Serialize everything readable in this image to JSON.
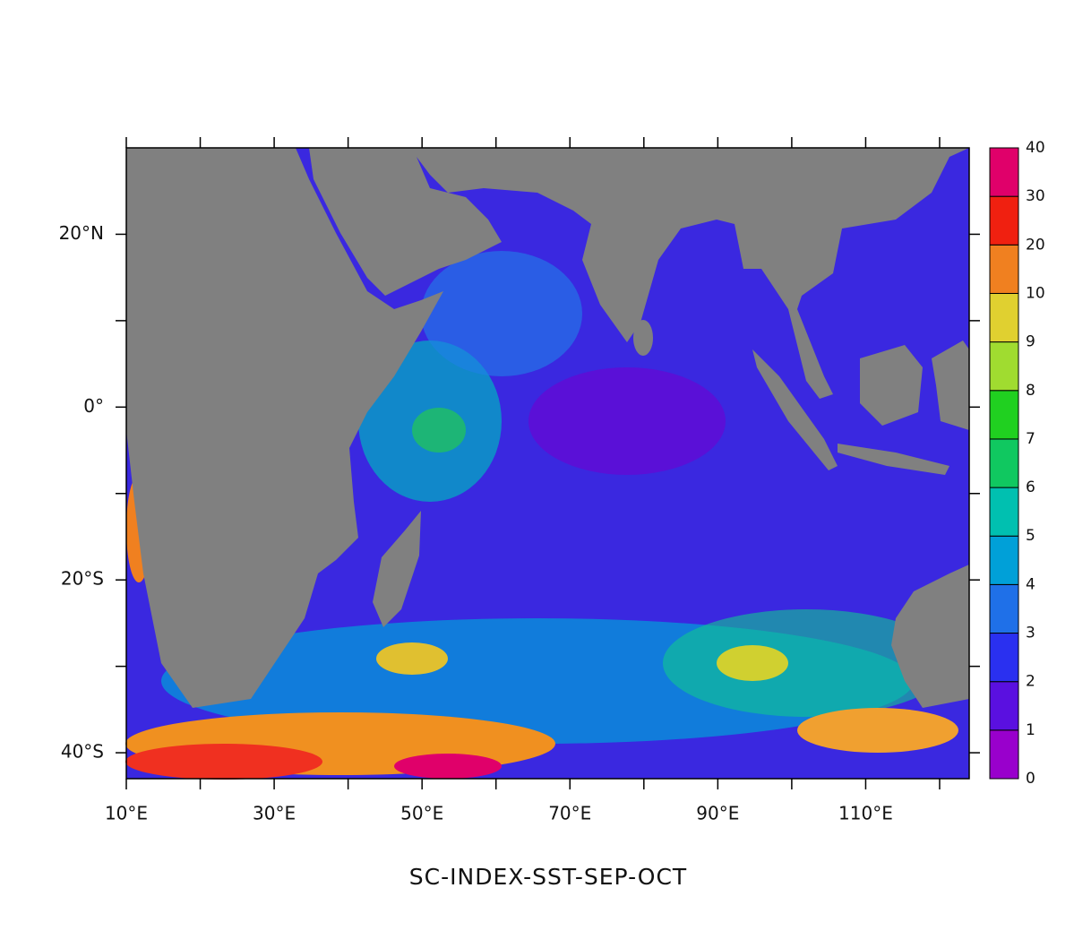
{
  "chart_data": {
    "type": "map",
    "title": "SC-INDEX-SST-SEP-OCT",
    "xlim": [
      10,
      124
    ],
    "ylim": [
      -43,
      30
    ],
    "xticks": [
      {
        "value": 10,
        "label": "10°E"
      },
      {
        "value": 20,
        "label": null
      },
      {
        "value": 30,
        "label": "30°E"
      },
      {
        "value": 40,
        "label": null
      },
      {
        "value": 50,
        "label": "50°E"
      },
      {
        "value": 60,
        "label": null
      },
      {
        "value": 70,
        "label": "70°E"
      },
      {
        "value": 80,
        "label": null
      },
      {
        "value": 90,
        "label": "90°E"
      },
      {
        "value": 100,
        "label": null
      },
      {
        "value": 110,
        "label": "110°E"
      },
      {
        "value": 120,
        "label": null
      }
    ],
    "yticks": [
      {
        "value": 20,
        "label": "20°N"
      },
      {
        "value": 10,
        "label": null
      },
      {
        "value": 0,
        "label": "0°"
      },
      {
        "value": -10,
        "label": null
      },
      {
        "value": -20,
        "label": "20°S"
      },
      {
        "value": -30,
        "label": null
      },
      {
        "value": -40,
        "label": "40°S"
      }
    ],
    "colorbar": {
      "levels": [
        0,
        1,
        2,
        3,
        4,
        5,
        6,
        7,
        8,
        9,
        10,
        20,
        30,
        40
      ],
      "colors": [
        "#9900cc",
        "#5a10e0",
        "#2a30f0",
        "#1f70e8",
        "#00a0d8",
        "#00c0b0",
        "#10c860",
        "#20d020",
        "#a0dc30",
        "#e0d030",
        "#f08020",
        "#f02010",
        "#e0006a"
      ]
    }
  }
}
